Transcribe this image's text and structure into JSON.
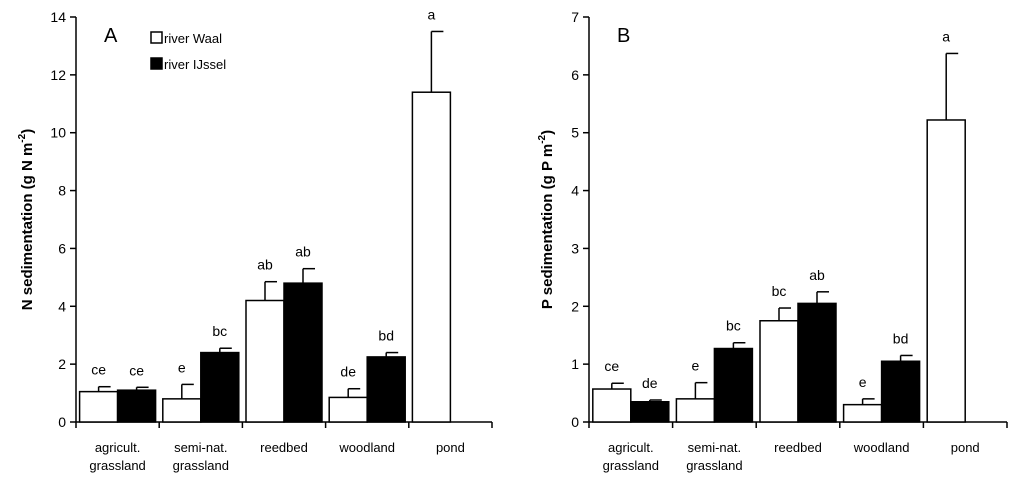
{
  "chart_data": [
    {
      "type": "bar",
      "panel_label": "A",
      "ylabel": "N sedimentation (g N m",
      "ylabel_sup": "-2",
      "ylabel_close": ")",
      "ylim": [
        0,
        14
      ],
      "yticks": [
        0,
        2,
        4,
        6,
        8,
        10,
        12,
        14
      ],
      "categories": [
        [
          "agricult.",
          "grassland"
        ],
        [
          "semi-nat.",
          "grassland"
        ],
        [
          "reedbed"
        ],
        [
          "woodland"
        ],
        [
          "pond"
        ]
      ],
      "series": [
        {
          "name": "river Waal",
          "color": "#ffffff",
          "values": [
            1.05,
            0.8,
            4.2,
            0.85,
            11.4
          ],
          "errors": [
            0.17,
            0.5,
            0.65,
            0.3,
            2.1
          ],
          "labels": [
            "ce",
            "e",
            "ab",
            "de",
            "a"
          ]
        },
        {
          "name": "river IJssel",
          "color": "#000000",
          "values": [
            1.1,
            2.4,
            4.8,
            2.25,
            null
          ],
          "errors": [
            0.1,
            0.15,
            0.5,
            0.15,
            null
          ],
          "labels": [
            "ce",
            "bc",
            "ab",
            "bd",
            null
          ]
        }
      ],
      "legend": "top-left"
    },
    {
      "type": "bar",
      "panel_label": "B",
      "ylabel": "P sedimentation (g P m",
      "ylabel_sup": "-2",
      "ylabel_close": ")",
      "ylim": [
        0,
        7
      ],
      "yticks": [
        0,
        1,
        2,
        3,
        4,
        5,
        6,
        7
      ],
      "categories": [
        [
          "agricult.",
          "grassland"
        ],
        [
          "semi-nat.",
          "grassland"
        ],
        [
          "reedbed"
        ],
        [
          "woodland"
        ],
        [
          "pond"
        ]
      ],
      "series": [
        {
          "name": "river Waal",
          "color": "#ffffff",
          "values": [
            0.57,
            0.4,
            1.75,
            0.3,
            5.22
          ],
          "errors": [
            0.1,
            0.28,
            0.22,
            0.1,
            1.15
          ],
          "labels": [
            "ce",
            "e",
            "bc",
            "e",
            "a"
          ]
        },
        {
          "name": "river IJssel",
          "color": "#000000",
          "values": [
            0.35,
            1.27,
            2.05,
            1.05,
            null
          ],
          "errors": [
            0.03,
            0.1,
            0.2,
            0.1,
            null
          ],
          "labels": [
            "de",
            "bc",
            "ab",
            "bd",
            null
          ]
        }
      ]
    }
  ]
}
